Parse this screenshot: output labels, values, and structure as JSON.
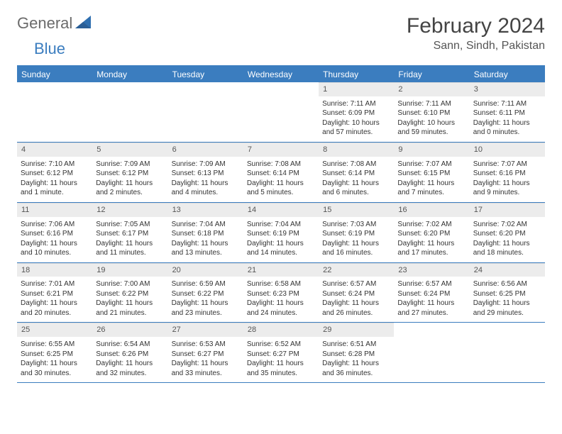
{
  "brand": {
    "part1": "General",
    "part2": "Blue"
  },
  "title": "February 2024",
  "location": "Sann, Sindh, Pakistan",
  "colors": {
    "accent": "#3b7dbf",
    "header_bg": "#3b7dbf",
    "daynum_bg": "#ececec",
    "text": "#333333"
  },
  "day_headers": [
    "Sunday",
    "Monday",
    "Tuesday",
    "Wednesday",
    "Thursday",
    "Friday",
    "Saturday"
  ],
  "weeks": [
    [
      {
        "n": "",
        "sr": "",
        "ss": "",
        "dl": ""
      },
      {
        "n": "",
        "sr": "",
        "ss": "",
        "dl": ""
      },
      {
        "n": "",
        "sr": "",
        "ss": "",
        "dl": ""
      },
      {
        "n": "",
        "sr": "",
        "ss": "",
        "dl": ""
      },
      {
        "n": "1",
        "sr": "Sunrise: 7:11 AM",
        "ss": "Sunset: 6:09 PM",
        "dl": "Daylight: 10 hours and 57 minutes."
      },
      {
        "n": "2",
        "sr": "Sunrise: 7:11 AM",
        "ss": "Sunset: 6:10 PM",
        "dl": "Daylight: 10 hours and 59 minutes."
      },
      {
        "n": "3",
        "sr": "Sunrise: 7:11 AM",
        "ss": "Sunset: 6:11 PM",
        "dl": "Daylight: 11 hours and 0 minutes."
      }
    ],
    [
      {
        "n": "4",
        "sr": "Sunrise: 7:10 AM",
        "ss": "Sunset: 6:12 PM",
        "dl": "Daylight: 11 hours and 1 minute."
      },
      {
        "n": "5",
        "sr": "Sunrise: 7:09 AM",
        "ss": "Sunset: 6:12 PM",
        "dl": "Daylight: 11 hours and 2 minutes."
      },
      {
        "n": "6",
        "sr": "Sunrise: 7:09 AM",
        "ss": "Sunset: 6:13 PM",
        "dl": "Daylight: 11 hours and 4 minutes."
      },
      {
        "n": "7",
        "sr": "Sunrise: 7:08 AM",
        "ss": "Sunset: 6:14 PM",
        "dl": "Daylight: 11 hours and 5 minutes."
      },
      {
        "n": "8",
        "sr": "Sunrise: 7:08 AM",
        "ss": "Sunset: 6:14 PM",
        "dl": "Daylight: 11 hours and 6 minutes."
      },
      {
        "n": "9",
        "sr": "Sunrise: 7:07 AM",
        "ss": "Sunset: 6:15 PM",
        "dl": "Daylight: 11 hours and 7 minutes."
      },
      {
        "n": "10",
        "sr": "Sunrise: 7:07 AM",
        "ss": "Sunset: 6:16 PM",
        "dl": "Daylight: 11 hours and 9 minutes."
      }
    ],
    [
      {
        "n": "11",
        "sr": "Sunrise: 7:06 AM",
        "ss": "Sunset: 6:16 PM",
        "dl": "Daylight: 11 hours and 10 minutes."
      },
      {
        "n": "12",
        "sr": "Sunrise: 7:05 AM",
        "ss": "Sunset: 6:17 PM",
        "dl": "Daylight: 11 hours and 11 minutes."
      },
      {
        "n": "13",
        "sr": "Sunrise: 7:04 AM",
        "ss": "Sunset: 6:18 PM",
        "dl": "Daylight: 11 hours and 13 minutes."
      },
      {
        "n": "14",
        "sr": "Sunrise: 7:04 AM",
        "ss": "Sunset: 6:19 PM",
        "dl": "Daylight: 11 hours and 14 minutes."
      },
      {
        "n": "15",
        "sr": "Sunrise: 7:03 AM",
        "ss": "Sunset: 6:19 PM",
        "dl": "Daylight: 11 hours and 16 minutes."
      },
      {
        "n": "16",
        "sr": "Sunrise: 7:02 AM",
        "ss": "Sunset: 6:20 PM",
        "dl": "Daylight: 11 hours and 17 minutes."
      },
      {
        "n": "17",
        "sr": "Sunrise: 7:02 AM",
        "ss": "Sunset: 6:20 PM",
        "dl": "Daylight: 11 hours and 18 minutes."
      }
    ],
    [
      {
        "n": "18",
        "sr": "Sunrise: 7:01 AM",
        "ss": "Sunset: 6:21 PM",
        "dl": "Daylight: 11 hours and 20 minutes."
      },
      {
        "n": "19",
        "sr": "Sunrise: 7:00 AM",
        "ss": "Sunset: 6:22 PM",
        "dl": "Daylight: 11 hours and 21 minutes."
      },
      {
        "n": "20",
        "sr": "Sunrise: 6:59 AM",
        "ss": "Sunset: 6:22 PM",
        "dl": "Daylight: 11 hours and 23 minutes."
      },
      {
        "n": "21",
        "sr": "Sunrise: 6:58 AM",
        "ss": "Sunset: 6:23 PM",
        "dl": "Daylight: 11 hours and 24 minutes."
      },
      {
        "n": "22",
        "sr": "Sunrise: 6:57 AM",
        "ss": "Sunset: 6:24 PM",
        "dl": "Daylight: 11 hours and 26 minutes."
      },
      {
        "n": "23",
        "sr": "Sunrise: 6:57 AM",
        "ss": "Sunset: 6:24 PM",
        "dl": "Daylight: 11 hours and 27 minutes."
      },
      {
        "n": "24",
        "sr": "Sunrise: 6:56 AM",
        "ss": "Sunset: 6:25 PM",
        "dl": "Daylight: 11 hours and 29 minutes."
      }
    ],
    [
      {
        "n": "25",
        "sr": "Sunrise: 6:55 AM",
        "ss": "Sunset: 6:25 PM",
        "dl": "Daylight: 11 hours and 30 minutes."
      },
      {
        "n": "26",
        "sr": "Sunrise: 6:54 AM",
        "ss": "Sunset: 6:26 PM",
        "dl": "Daylight: 11 hours and 32 minutes."
      },
      {
        "n": "27",
        "sr": "Sunrise: 6:53 AM",
        "ss": "Sunset: 6:27 PM",
        "dl": "Daylight: 11 hours and 33 minutes."
      },
      {
        "n": "28",
        "sr": "Sunrise: 6:52 AM",
        "ss": "Sunset: 6:27 PM",
        "dl": "Daylight: 11 hours and 35 minutes."
      },
      {
        "n": "29",
        "sr": "Sunrise: 6:51 AM",
        "ss": "Sunset: 6:28 PM",
        "dl": "Daylight: 11 hours and 36 minutes."
      },
      {
        "n": "",
        "sr": "",
        "ss": "",
        "dl": ""
      },
      {
        "n": "",
        "sr": "",
        "ss": "",
        "dl": ""
      }
    ]
  ]
}
